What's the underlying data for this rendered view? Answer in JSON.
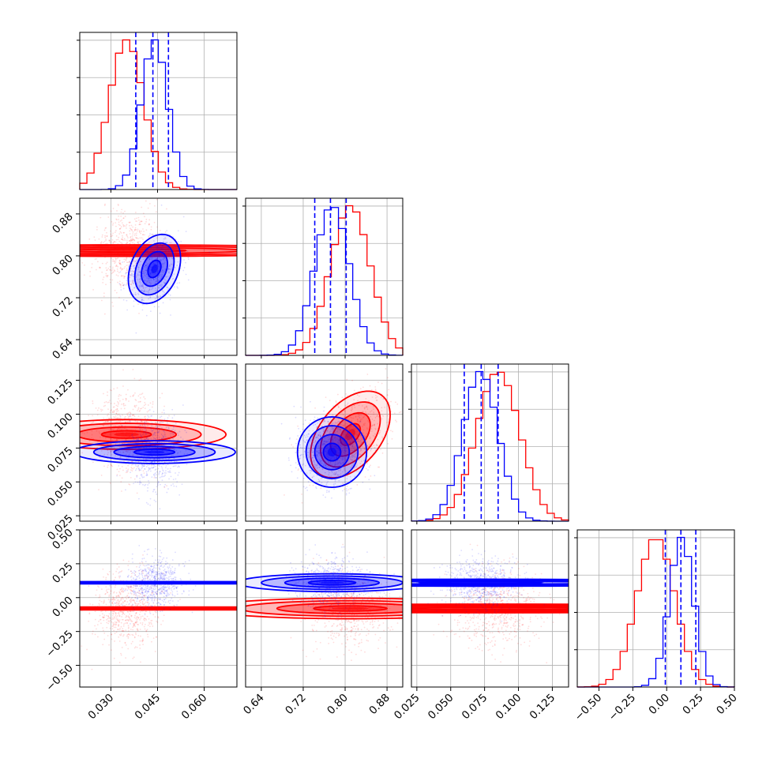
{
  "chart_data": {
    "type": "scatter",
    "chart_kind": "corner plot",
    "grid": true,
    "legend": "none",
    "series": [
      {
        "color": "#ff0000",
        "mean": [
          0.035,
          0.81,
          0.085,
          -0.08
        ],
        "sd": [
          0.0055,
          0.038,
          0.016,
          0.14
        ],
        "corr": [
          [
            1,
            0,
            0,
            0
          ],
          [
            0,
            1,
            0.45,
            0
          ],
          [
            0,
            0.45,
            1,
            0
          ],
          [
            0,
            0,
            0,
            1
          ]
        ]
      },
      {
        "color": "#0000ff",
        "mean": [
          0.044,
          0.775,
          0.072,
          0.11
        ],
        "sd": [
          0.0042,
          0.033,
          0.013,
          0.09
        ],
        "corr": [
          [
            1,
            0.3,
            0,
            0
          ],
          [
            0.3,
            1,
            0,
            0
          ],
          [
            0,
            0,
            1,
            0
          ],
          [
            0,
            0,
            0,
            1
          ]
        ]
      }
    ],
    "quantile_color": "#0000ff",
    "quantiles": [
      [
        0.038,
        0.0435,
        0.0485
      ],
      [
        0.742,
        0.772,
        0.802
      ],
      [
        0.06,
        0.0725,
        0.085
      ],
      [
        -0.01,
        0.105,
        0.215
      ]
    ],
    "contour_levels_sigma": [
      0.5,
      1.0,
      1.5,
      2.0
    ],
    "parameters": [
      {
        "range": [
          0.02,
          0.0705
        ],
        "ticks": [
          0.03,
          0.045,
          0.06
        ],
        "tick_labels": [
          "0.030",
          "0.045",
          "0.060"
        ]
      },
      {
        "range": [
          0.61,
          0.91
        ],
        "ticks": [
          0.64,
          0.72,
          0.8,
          0.88
        ],
        "tick_labels": [
          "0.64",
          "0.72",
          "0.80",
          "0.88"
        ]
      },
      {
        "range": [
          0.021,
          0.137
        ],
        "ticks": [
          0.025,
          0.05,
          0.075,
          0.1,
          0.125
        ],
        "tick_labels": [
          "0.025",
          "0.050",
          "0.075",
          "0.100",
          "0.125"
        ]
      },
      {
        "range": [
          -0.66,
          0.5
        ],
        "ticks": [
          -0.5,
          -0.25,
          0,
          0.25,
          0.5
        ],
        "tick_labels": [
          "−0.50",
          "−0.25",
          "0.00",
          "0.25",
          "0.50"
        ]
      }
    ]
  }
}
